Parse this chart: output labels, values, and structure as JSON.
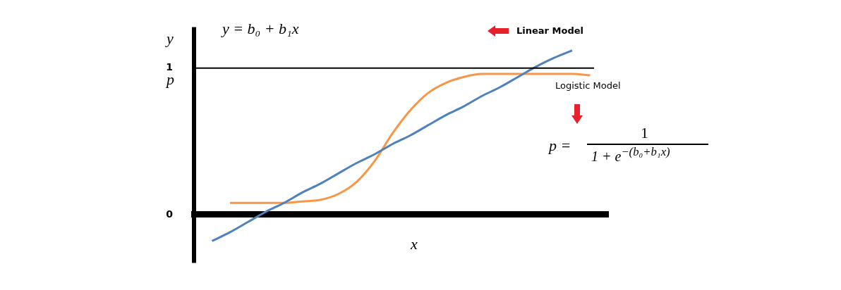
{
  "chart_data": {
    "type": "line",
    "xlabel": "x",
    "ylabel": "y",
    "categories": [
      null,
      null,
      null,
      null,
      null,
      null,
      null,
      null,
      null,
      null,
      null,
      null,
      null,
      null,
      null,
      null,
      null,
      null,
      null,
      null,
      null,
      null,
      null,
      null
    ],
    "series": [
      {
        "color": "#4f81bd",
        "values": [
          null,
          -0.18,
          -0.12,
          -0.05,
          0.02,
          0.08,
          0.15,
          0.21,
          0.28,
          0.35,
          0.41,
          0.48,
          0.54,
          0.61,
          0.68,
          0.74,
          0.81,
          0.87,
          0.94,
          1.01,
          1.07,
          1.12,
          null,
          null
        ]
      },
      {
        "color": "#f79646",
        "values": [
          null,
          null,
          0.08,
          0.08,
          0.08,
          0.08,
          0.09,
          0.1,
          0.14,
          0.22,
          0.36,
          0.55,
          0.71,
          0.83,
          0.9,
          0.94,
          0.96,
          0.96,
          0.96,
          0.96,
          0.96,
          0.96,
          0.95,
          null
        ]
      }
    ],
    "ylim": [
      -0.33,
      1.28
    ],
    "yticks": [
      0,
      1
    ],
    "grid": false,
    "legend": false,
    "marker": "none",
    "line_style": "solid",
    "tick_labels": "y",
    "ref_lines": [
      {
        "axis": "y",
        "value": 1,
        "color": "#000000"
      }
    ],
    "annotations": [
      "p",
      "y = b₀ + b₁x",
      "Linear Model",
      "Logistic Model",
      "p =",
      "1",
      "1 + e$^{−(b₀+b₁x)}$"
    ]
  }
}
